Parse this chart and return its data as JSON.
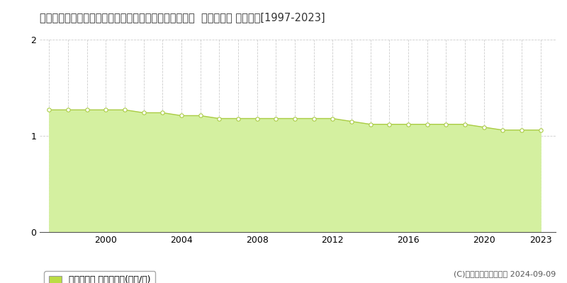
{
  "title": "宮崎県西臼杵郡五ケ瀬町大字鞍岡字道ノ上７０１５番１  基準地価格 地価推移[1997-2023]",
  "years": [
    1997,
    1998,
    1999,
    2000,
    2001,
    2002,
    2003,
    2004,
    2005,
    2006,
    2007,
    2008,
    2009,
    2010,
    2011,
    2012,
    2013,
    2014,
    2015,
    2016,
    2017,
    2018,
    2019,
    2020,
    2021,
    2022,
    2023
  ],
  "values": [
    1.27,
    1.27,
    1.27,
    1.27,
    1.27,
    1.24,
    1.24,
    1.21,
    1.21,
    1.18,
    1.18,
    1.18,
    1.18,
    1.18,
    1.18,
    1.18,
    1.15,
    1.12,
    1.12,
    1.12,
    1.12,
    1.12,
    1.12,
    1.09,
    1.06,
    1.06,
    1.06
  ],
  "fill_color": "#d4f0a0",
  "line_color_hex": "#aacc44",
  "marker_facecolor": "#ffffff",
  "marker_edgecolor": "#aacc44",
  "ylim": [
    0,
    2
  ],
  "yticks": [
    0,
    1,
    2
  ],
  "xlim_start": 1996.5,
  "xlim_end": 2023.8,
  "xlabel_ticks": [
    2000,
    2004,
    2008,
    2012,
    2016,
    2020,
    2023
  ],
  "legend_label": "基準地価格 平均坪単価(万円/坪)",
  "legend_color": "#bbdd44",
  "copyright_text": "(C)土地価格ドットコム 2024-09-09",
  "background_color": "#ffffff",
  "grid_color": "#cccccc",
  "title_fontsize": 10.5,
  "axis_fontsize": 9,
  "legend_fontsize": 9,
  "copyright_fontsize": 8
}
